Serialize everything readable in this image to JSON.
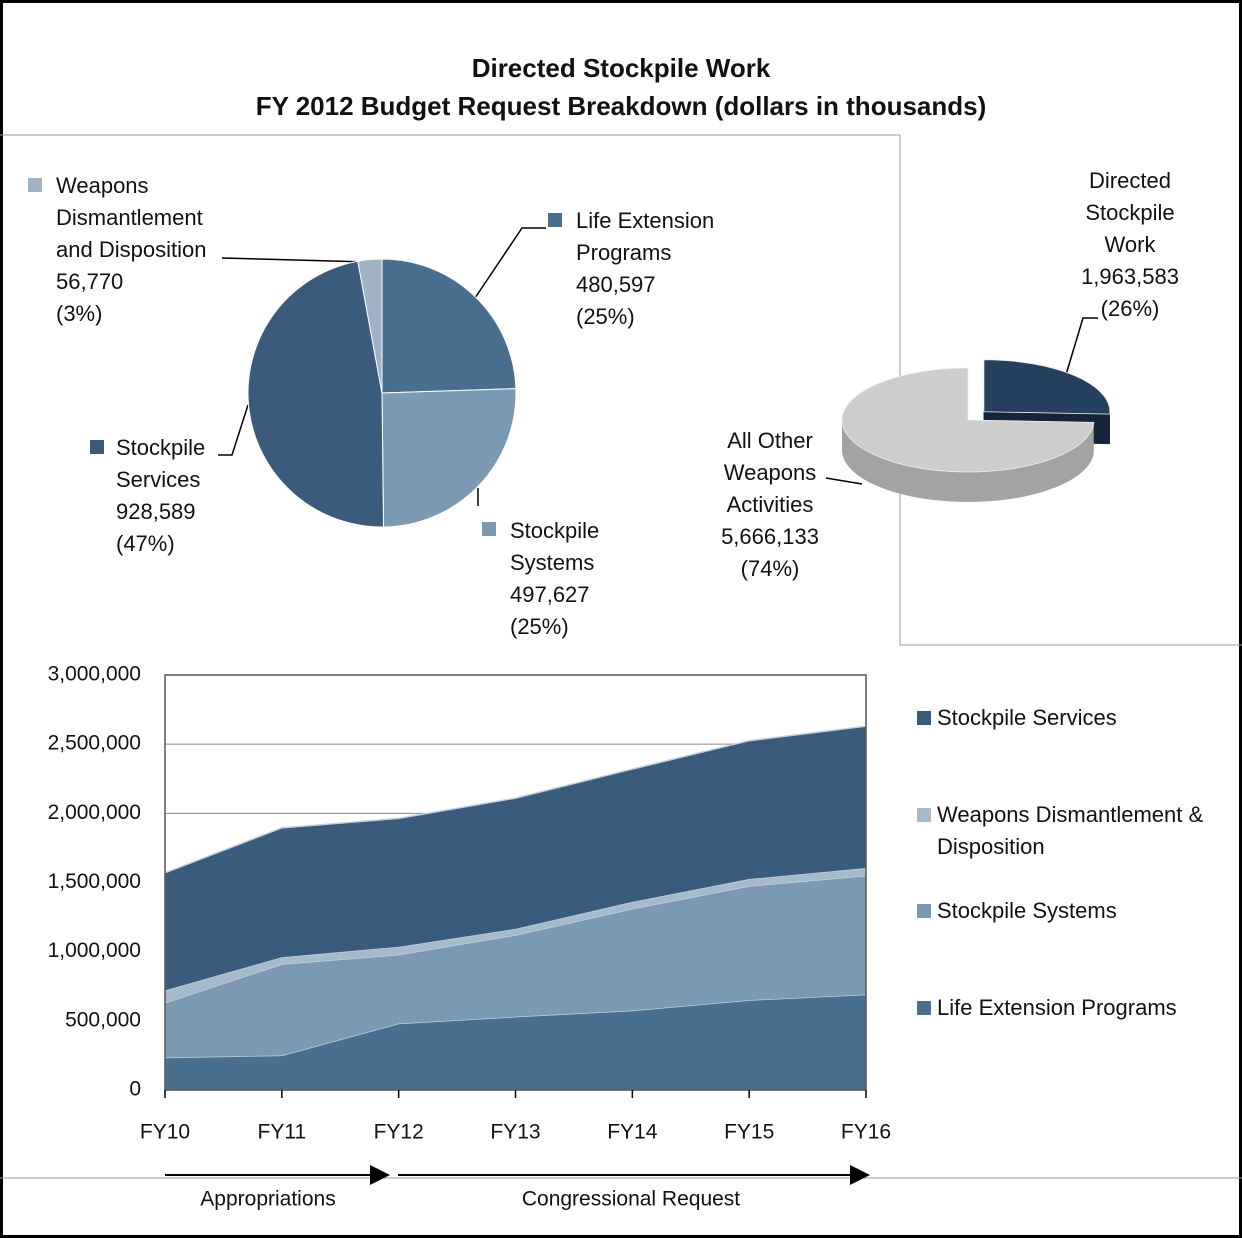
{
  "title": "Directed Stockpile Work",
  "subtitle": "FY 2012 Budget Request Breakdown (dollars in thousands)",
  "chart_data": [
    {
      "type": "pie",
      "categories": [
        "Life Extension Programs",
        "Stockpile Systems",
        "Stockpile Services",
        "Weapons Dismantlement and Disposition"
      ],
      "values": [
        480597,
        497627,
        928589,
        56770
      ],
      "value_labels": [
        "480,597",
        "497,627",
        "928,589",
        "56,770"
      ],
      "percents": [
        25,
        25,
        47,
        3
      ],
      "percent_labels": [
        "(25%)",
        "(25%)",
        "(47%)",
        "(3%)"
      ],
      "colors": [
        "#4a6f8e",
        "#7b99b0",
        "#3b5b7d",
        "#9fb3c5"
      ]
    },
    {
      "type": "pie3d",
      "categories": [
        "Directed Stockpile Work",
        "All Other Weapons Activities"
      ],
      "values": [
        1963583,
        5666133
      ],
      "value_labels": [
        "1,963,583",
        "5,666,133"
      ],
      "percents": [
        26,
        74
      ],
      "percent_labels": [
        "(26%)",
        "(74%)"
      ],
      "colors": [
        "#25405f",
        "#cdcdcd"
      ],
      "side_colors": [
        "#14253a",
        "#a3a3a3"
      ],
      "explode": [
        true,
        false
      ]
    },
    {
      "type": "area",
      "stacked": true,
      "categories": [
        "FY10",
        "FY11",
        "FY12",
        "FY13",
        "FY14",
        "FY15",
        "FY16"
      ],
      "series": [
        {
          "name": "Life Extension Programs",
          "color": "#4a6f8e",
          "values": [
            235000,
            250000,
            480597,
            530000,
            575000,
            650000,
            690000
          ]
        },
        {
          "name": "Stockpile Systems",
          "color": "#7b99b0",
          "values": [
            395000,
            660000,
            497627,
            590000,
            735000,
            825000,
            860000
          ]
        },
        {
          "name": "Weapons Dismantlement & Disposition",
          "color": "#a7bacb",
          "values": [
            90000,
            50000,
            56770,
            45000,
            50000,
            50000,
            55000
          ]
        },
        {
          "name": "Stockpile Services",
          "color": "#3b5b7d",
          "values": [
            850000,
            935000,
            928589,
            945000,
            960000,
            1000000,
            1025000
          ]
        }
      ],
      "ylim": [
        0,
        3000000
      ],
      "yticks": [
        0,
        {
          "value": 500000,
          "label": "500,000"
        },
        {
          "value": 1000000,
          "label": "1,000,000"
        },
        {
          "value": 1500000,
          "label": "1,500,000"
        },
        {
          "value": 2000000,
          "label": "2,000,000"
        },
        {
          "value": 2500000,
          "label": "2,500,000"
        },
        {
          "value": 3000000,
          "label": "3,000,000"
        }
      ],
      "grid": true,
      "annotations": [
        "Appropriations",
        "Congressional Request"
      ]
    }
  ]
}
